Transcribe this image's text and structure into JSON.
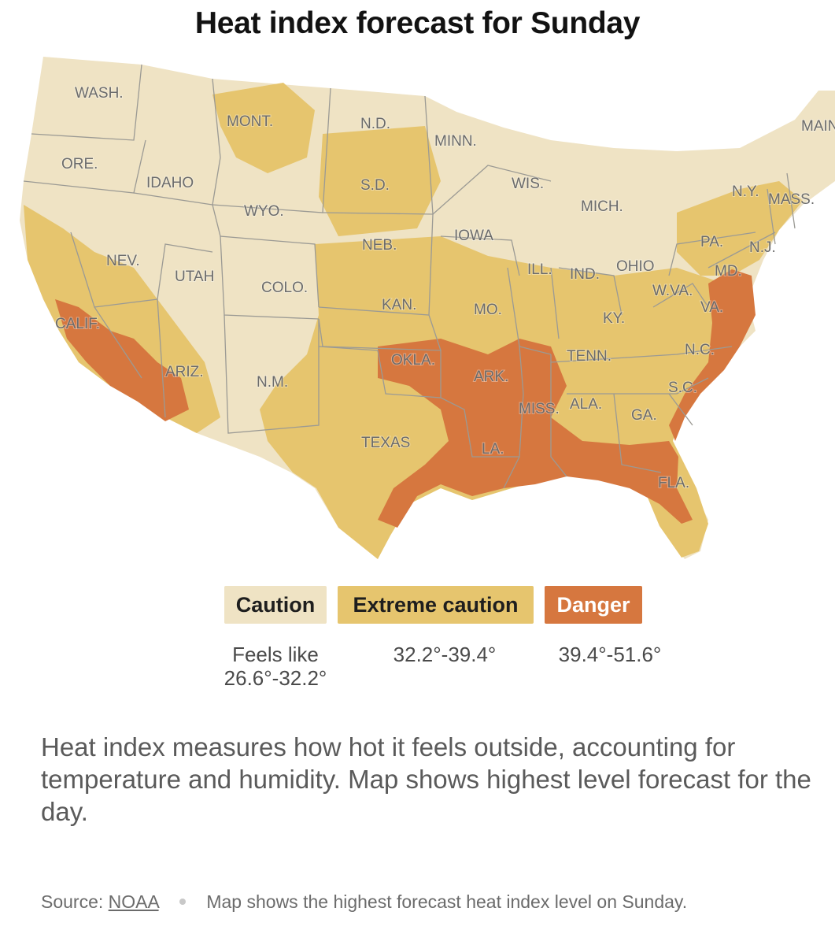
{
  "title": "Heat index forecast for Sunday",
  "colors": {
    "caution": "#efe3c4",
    "extreme_caution": "#e6c56e",
    "danger": "#d6773f",
    "borders": "#9b9a94"
  },
  "states": [
    "WASH.",
    "MONT.",
    "N.D.",
    "MINN.",
    "MAINE",
    "ORE.",
    "IDAHO",
    "S.D.",
    "WIS.",
    "N.Y.",
    "MASS.",
    "MICH.",
    "WYO.",
    "IOWA",
    "NEB.",
    "PA.",
    "N.J.",
    "NEV.",
    "UTAH",
    "ILL.",
    "IND.",
    "OHIO",
    "MD.",
    "COLO.",
    "W.VA.",
    "VA.",
    "KAN.",
    "MO.",
    "KY.",
    "CALIF.",
    "N.C.",
    "OKLA.",
    "TENN.",
    "ARK.",
    "ARIZ.",
    "N.M.",
    "S.C.",
    "MISS.",
    "ALA.",
    "GA.",
    "TEXAS",
    "LA.",
    "FLA."
  ],
  "legend": [
    {
      "label": "Caution",
      "range": "Feels like 26.6°-32.2°",
      "range_line1": "Feels like",
      "range_line2": "26.6°-32.2°",
      "color": "#efe3c4"
    },
    {
      "label": "Extreme caution",
      "range": "32.2°-39.4°",
      "color": "#e6c56e"
    },
    {
      "label": "Danger",
      "range": "39.4°-51.6°",
      "color": "#d6773f"
    }
  ],
  "note": "Heat index measures how hot it feels outside, accounting for temperature and humidity. Map shows highest level forecast for the day.",
  "source": {
    "label": "Source:",
    "link": "NOAA",
    "text": "Map shows the highest forecast heat index level on Sunday."
  }
}
